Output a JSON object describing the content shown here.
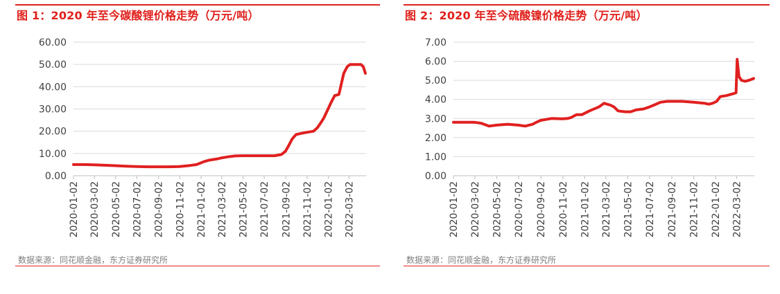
{
  "theme": {
    "accent": "#e0201b",
    "line_color": "#e02020",
    "grid_color": "#d9d9d9",
    "text_color": "#404040"
  },
  "charts": [
    {
      "title": "图 1：2020 年至今碳酸锂价格走势（万元/吨）",
      "source": "数据来源：同花顺金融，东方证券研究所",
      "chart_data": {
        "type": "line",
        "title": "图 1：2020 年至今碳酸锂价格走势（万元/吨）",
        "xlabel": "",
        "ylabel": "",
        "ylim": [
          0,
          60
        ],
        "y_ticks": [
          "0.00",
          "10.00",
          "20.00",
          "30.00",
          "40.00",
          "50.00",
          "60.00"
        ],
        "x_ticks": [
          "2020-01-02",
          "2020-03-02",
          "2020-05-02",
          "2020-07-02",
          "2020-09-02",
          "2020-11-02",
          "2021-01-02",
          "2021-03-02",
          "2021-05-02",
          "2021-07-02",
          "2021-09-02",
          "2021-11-02",
          "2022-01-02",
          "2022-03-02"
        ],
        "xlim": [
          "2020-01-02",
          "2022-04-20"
        ],
        "grid": true,
        "series": [
          {
            "x": [
              "2020-01-02",
              "2020-02-01",
              "2020-03-01",
              "2020-04-01",
              "2020-05-01",
              "2020-06-01",
              "2020-07-01",
              "2020-08-01",
              "2020-09-01",
              "2020-10-01",
              "2020-11-01",
              "2020-12-01",
              "2020-12-20",
              "2021-01-10",
              "2021-01-25",
              "2021-02-15",
              "2021-03-01",
              "2021-03-20",
              "2021-04-10",
              "2021-05-01",
              "2021-06-01",
              "2021-07-01",
              "2021-08-01",
              "2021-08-20",
              "2021-09-01",
              "2021-09-10",
              "2021-09-20",
              "2021-10-01",
              "2021-10-15",
              "2021-11-01",
              "2021-11-20",
              "2021-12-01",
              "2021-12-10",
              "2021-12-20",
              "2022-01-01",
              "2022-01-10",
              "2022-01-20",
              "2022-02-01",
              "2022-02-15",
              "2022-02-25",
              "2022-03-05",
              "2022-03-15",
              "2022-03-25",
              "2022-04-05",
              "2022-04-12",
              "2022-04-18"
            ],
            "y": [
              5.0,
              5.0,
              4.9,
              4.7,
              4.5,
              4.3,
              4.1,
              4.0,
              4.0,
              4.0,
              4.1,
              4.6,
              5.0,
              6.3,
              7.0,
              7.5,
              8.0,
              8.5,
              8.9,
              9.0,
              9.0,
              9.0,
              9.0,
              9.5,
              11.0,
              13.5,
              16.5,
              18.5,
              19.0,
              19.5,
              20.0,
              21.5,
              23.5,
              26.0,
              30.0,
              33.0,
              36.0,
              36.5,
              46.0,
              49.0,
              50.0,
              50.0,
              50.0,
              50.0,
              49.0,
              46.0
            ]
          }
        ]
      }
    },
    {
      "title": "图 2：2020 年至今硫酸镍价格走势（万元/吨）",
      "source": "数据来源：同花顺金融，东方证券研究所",
      "chart_data": {
        "type": "line",
        "title": "图 2：2020 年至今硫酸镍价格走势（万元/吨）",
        "xlabel": "",
        "ylabel": "",
        "ylim": [
          0,
          7
        ],
        "y_ticks": [
          "0.00",
          "1.00",
          "2.00",
          "3.00",
          "4.00",
          "5.00",
          "6.00",
          "7.00"
        ],
        "x_ticks": [
          "2020-01-02",
          "2020-03-02",
          "2020-05-02",
          "2020-07-02",
          "2020-09-02",
          "2020-11-02",
          "2021-01-02",
          "2021-03-02",
          "2021-05-02",
          "2021-07-02",
          "2021-09-02",
          "2021-11-02",
          "2022-01-02",
          "2022-03-02"
        ],
        "xlim": [
          "2020-01-02",
          "2022-04-20"
        ],
        "grid": true,
        "series": [
          {
            "x": [
              "2020-01-02",
              "2020-02-01",
              "2020-03-01",
              "2020-03-20",
              "2020-04-10",
              "2020-05-01",
              "2020-06-01",
              "2020-07-01",
              "2020-07-20",
              "2020-08-10",
              "2020-08-20",
              "2020-09-01",
              "2020-10-01",
              "2020-11-01",
              "2020-11-15",
              "2020-11-25",
              "2020-12-10",
              "2020-12-25",
              "2021-01-15",
              "2021-02-10",
              "2021-02-25",
              "2021-03-05",
              "2021-03-15",
              "2021-03-25",
              "2021-04-05",
              "2021-04-25",
              "2021-05-10",
              "2021-05-25",
              "2021-06-15",
              "2021-07-01",
              "2021-07-20",
              "2021-08-01",
              "2021-08-20",
              "2021-09-01",
              "2021-10-01",
              "2021-11-01",
              "2021-12-01",
              "2021-12-15",
              "2021-12-25",
              "2022-01-05",
              "2022-01-15",
              "2022-02-01",
              "2022-02-20",
              "2022-02-28",
              "2022-03-03",
              "2022-03-08",
              "2022-03-15",
              "2022-03-25",
              "2022-04-05",
              "2022-04-18"
            ],
            "y": [
              2.8,
              2.8,
              2.8,
              2.75,
              2.6,
              2.65,
              2.7,
              2.65,
              2.6,
              2.7,
              2.8,
              2.9,
              3.0,
              2.98,
              3.0,
              3.05,
              3.2,
              3.2,
              3.4,
              3.6,
              3.8,
              3.75,
              3.7,
              3.6,
              3.4,
              3.35,
              3.35,
              3.45,
              3.5,
              3.6,
              3.75,
              3.85,
              3.9,
              3.9,
              3.9,
              3.85,
              3.8,
              3.75,
              3.8,
              3.9,
              4.15,
              4.2,
              4.3,
              4.35,
              6.1,
              5.2,
              5.0,
              4.95,
              5.0,
              5.1
            ]
          }
        ]
      }
    }
  ]
}
